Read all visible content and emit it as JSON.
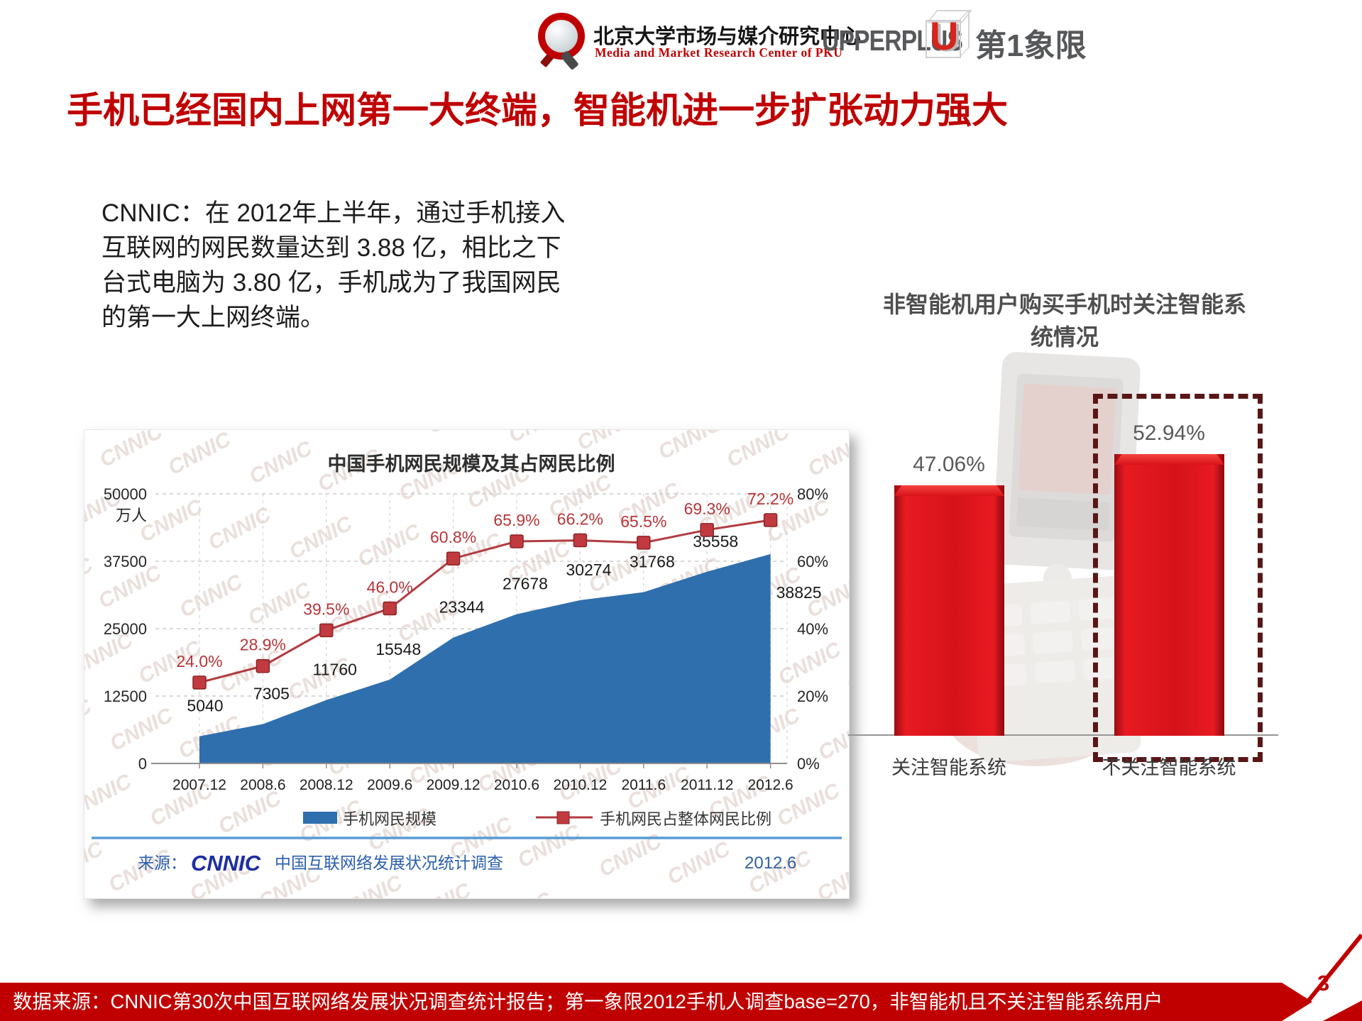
{
  "header": {
    "pku_cn": "北京大学市场与媒介研究中心",
    "pku_en": "Media and Market Research Center of PKU",
    "upperplus": "UPPERPLUS",
    "u_glyph": "U",
    "quadrant": "第1象限"
  },
  "title": "手机已经国内上网第一大终端，智能机进一步扩张动力强大",
  "body_lines": [
    "CNNIC：在 2012年上半年，通过手机接入",
    "互联网的网民数量达到 3.88 亿，相比之下",
    "台式电脑为 3.80 亿，手机成为了我国网民",
    "的第一大上网终端。"
  ],
  "colors": {
    "accent_red": "#c00000",
    "area_blue": "#2f6fad",
    "line_red": "#b23b40",
    "marker_red": "#c03a40",
    "pct_label_red": "#b5353a",
    "bar_red": "#d61219",
    "dashed_box": "#591616",
    "source_blue": "#2b5fae",
    "separator_blue": "#5b9bd5"
  },
  "chart_data": [
    {
      "type": "area",
      "title": "中国手机网民规模及其占网民比例",
      "x": [
        "2007.12",
        "2008.6",
        "2008.12",
        "2009.6",
        "2009.12",
        "2010.6",
        "2010.12",
        "2011.6",
        "2011.12",
        "2012.6"
      ],
      "series": [
        {
          "name": "手机网民规模",
          "type": "area",
          "values": [
            5040,
            7305,
            11760,
            15548,
            23344,
            27678,
            30274,
            31768,
            35558,
            38825
          ]
        },
        {
          "name": "手机网民占整体网民比例",
          "type": "line",
          "values": [
            24.0,
            28.9,
            39.5,
            46.0,
            60.8,
            65.9,
            66.2,
            65.5,
            69.3,
            72.2
          ]
        }
      ],
      "left_axis": {
        "ticks": [
          "50000",
          "37500",
          "25000",
          "12500",
          "0"
        ],
        "unit": "万人",
        "max": 50000
      },
      "right_axis": {
        "ticks": [
          "80%",
          "60%",
          "40%",
          "20%",
          "0%"
        ],
        "max": 80
      },
      "legend_position": "bottom",
      "grid": true,
      "watermark": "CNNIC",
      "source_prefix": "来源：",
      "source_logo": "CNNIC",
      "source_text": "中国互联网络发展状况统计调查",
      "source_date": "2012.6"
    },
    {
      "type": "bar",
      "title_lines": [
        "非智能机用户购买手机时关注智能系",
        "统情况"
      ],
      "categories": [
        "关注智能系统",
        "不关注智能系统"
      ],
      "values": [
        47.06,
        52.94
      ],
      "labels": [
        "47.06%",
        "52.94%"
      ],
      "ylim": [
        0,
        60
      ],
      "highlight_index": 1
    }
  ],
  "footer": {
    "text": "数据来源：CNNIC第30次中国互联网络发展状况调查统计报告；第一象限2012手机人调查base=270，非智能机且不关注智能系统用户",
    "page": "3"
  }
}
